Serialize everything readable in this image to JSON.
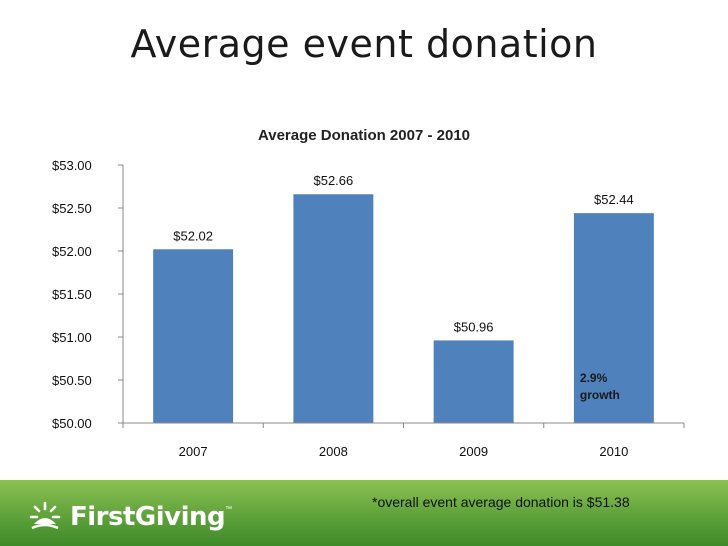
{
  "slide": {
    "title": "Average event donation",
    "footnote": "*overall event average donation is $51.38",
    "brand": "FirstGiving",
    "brand_tm": "™"
  },
  "chart_data": {
    "type": "bar",
    "title": "Average Donation 2007 - 2010",
    "categories": [
      "2007",
      "2008",
      "2009",
      "2010"
    ],
    "values": [
      52.02,
      52.66,
      50.96,
      52.44
    ],
    "data_labels": [
      "$52.02",
      "$52.66",
      "$50.96",
      "$52.44"
    ],
    "ylim": [
      50.0,
      53.0
    ],
    "yticks": [
      50.0,
      50.5,
      51.0,
      51.5,
      52.0,
      52.5,
      53.0
    ],
    "ytick_labels": [
      "$50.00",
      "$50.50",
      "$51.00",
      "$51.50",
      "$52.00",
      "$52.50",
      "$53.00"
    ],
    "xlabel": "",
    "ylabel": "",
    "grid": false,
    "legend": "none",
    "bar_color": "#4f81bd",
    "annotation": {
      "category": "2010",
      "lines": [
        "2.9%",
        "growth"
      ]
    }
  }
}
